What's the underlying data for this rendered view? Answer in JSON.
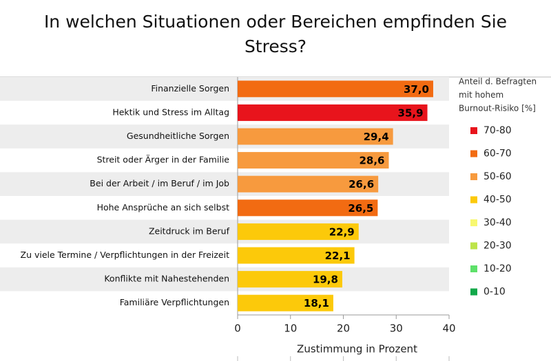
{
  "chart_data": {
    "type": "bar",
    "orientation": "horizontal",
    "title": "In welchen Situationen oder Bereichen empfinden Sie Stress?",
    "xlabel": "Zustimmung in Prozent",
    "categories": [
      "Finanzielle Sorgen",
      "Hektik und Stress im Alltag",
      "Gesundheitliche Sorgen",
      "Streit oder Ärger in der Familie",
      "Bei der Arbeit / im Beruf / im Job",
      "Hohe Ansprüche an sich selbst",
      "Zeitdruck im Beruf",
      "Zu viele Termine / Verpflichtungen in der Freizeit",
      "Konflikte mit Nahestehenden",
      "Familiäre Verpflichtungen"
    ],
    "values": [
      37.0,
      35.9,
      29.4,
      28.6,
      26.6,
      26.5,
      22.9,
      22.1,
      19.8,
      18.1
    ],
    "value_labels": [
      "37,0",
      "35,9",
      "29,4",
      "28,6",
      "26,6",
      "26,5",
      "22,9",
      "22,1",
      "19,8",
      "18,1"
    ],
    "colors": [
      "#f26b12",
      "#e8141c",
      "#f79a3e",
      "#f79a3e",
      "#f79a3e",
      "#f26b12",
      "#fcc90a",
      "#fcc90a",
      "#fcc90a",
      "#fcc90a"
    ],
    "xlim": [
      0,
      40
    ],
    "xticks": [
      0,
      10,
      20,
      30,
      40
    ],
    "legend_title": [
      "Anteil d. Befragten",
      "mit hohem",
      "Burnout-Risiko [%]"
    ],
    "legend": [
      {
        "label": "70-80",
        "color": "#e8141c"
      },
      {
        "label": "60-70",
        "color": "#f26b12"
      },
      {
        "label": "50-60",
        "color": "#f79a3e"
      },
      {
        "label": "40-50",
        "color": "#fcc90a"
      },
      {
        "label": "30-40",
        "color": "#f8f870"
      },
      {
        "label": "20-30",
        "color": "#bde44a"
      },
      {
        "label": "10-20",
        "color": "#5ee06a"
      },
      {
        "label": "0-10",
        "color": "#12a84a"
      }
    ]
  }
}
